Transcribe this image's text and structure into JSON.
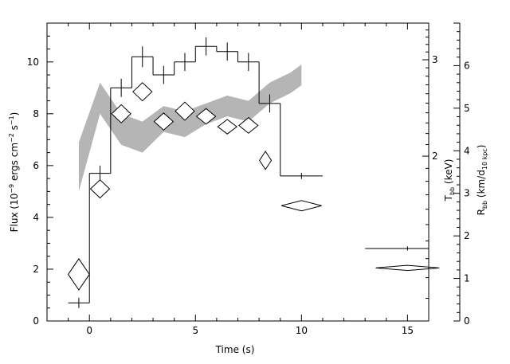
{
  "chart_data": {
    "type": "line",
    "xlabel": "Time (s)",
    "ylabel_left": {
      "main": "Flux (10",
      "exp1": "−9",
      "mid": " ergs cm",
      "exp2": "−2",
      "mid2": " s",
      "exp3": "−1",
      "end": ")"
    },
    "ylabel_right1": {
      "main": "T",
      "sub": "bb",
      "end": " (keV)"
    },
    "ylabel_right2": {
      "main": "R",
      "sub": "bb",
      "mid": " (km/d",
      "sub2": "10 kpc",
      "end": ")"
    },
    "xlim": [
      -2,
      16
    ],
    "ylim_left": [
      0,
      11.5
    ],
    "ylim_temp_log": [
      1.0,
      3.5
    ],
    "ylim_radius": [
      0,
      7
    ],
    "x_ticks": [
      0,
      5,
      10,
      15
    ],
    "x_tick_labels": [
      "0",
      "5",
      "10",
      "15"
    ],
    "y_left_ticks": [
      0,
      2,
      4,
      6,
      8,
      10
    ],
    "y_left_tick_labels": [
      "0",
      "2",
      "4",
      "6",
      "8",
      "10"
    ],
    "y_temp_ticks": [
      2,
      3
    ],
    "y_temp_tick_labels": [
      "2",
      "3"
    ],
    "y_radius_ticks": [
      0,
      1,
      2,
      3,
      4,
      5,
      6
    ],
    "y_radius_tick_labels": [
      "0",
      "1",
      "2",
      "3",
      "4",
      "5",
      "6"
    ],
    "flux_steps": [
      {
        "x0": -1.0,
        "x1": 0.0,
        "y": 0.7,
        "err": 0.2,
        "xc": -0.5
      },
      {
        "x0": 0.0,
        "x1": 1.0,
        "y": 5.7,
        "err": 0.3,
        "xc": 0.5
      },
      {
        "x0": 1.0,
        "x1": 2.0,
        "y": 9.0,
        "err": 0.35,
        "xc": 1.5
      },
      {
        "x0": 2.0,
        "x1": 3.0,
        "y": 10.2,
        "err": 0.4,
        "xc": 2.5
      },
      {
        "x0": 3.0,
        "x1": 4.0,
        "y": 9.5,
        "err": 0.35,
        "xc": 3.5
      },
      {
        "x0": 4.0,
        "x1": 5.0,
        "y": 10.0,
        "err": 0.35,
        "xc": 4.5
      },
      {
        "x0": 5.0,
        "x1": 6.0,
        "y": 10.6,
        "err": 0.35,
        "xc": 5.5
      },
      {
        "x0": 6.0,
        "x1": 7.0,
        "y": 10.4,
        "err": 0.35,
        "xc": 6.5
      },
      {
        "x0": 7.0,
        "x1": 8.0,
        "y": 10.0,
        "err": 0.35,
        "xc": 7.5
      },
      {
        "x0": 8.0,
        "x1": 9.0,
        "y": 8.4,
        "err": 0.35,
        "xc": 8.5
      },
      {
        "x0": 9.0,
        "x1": 11.0,
        "y": 5.6,
        "err": 0.12,
        "xc": 10.0
      },
      {
        "x0": 13.0,
        "x1": 17.0,
        "y": 2.8,
        "err": 0.08,
        "xc": 15.0
      }
    ],
    "temperature_diamonds": [
      {
        "x": -0.5,
        "y": 1.8,
        "hw": 0.5,
        "hh": 0.6
      },
      {
        "x": 0.5,
        "y": 5.1,
        "hw": 0.45,
        "hh": 0.35
      },
      {
        "x": 1.5,
        "y": 8.0,
        "hw": 0.45,
        "hh": 0.35
      },
      {
        "x": 2.5,
        "y": 8.85,
        "hw": 0.45,
        "hh": 0.35
      },
      {
        "x": 3.5,
        "y": 7.7,
        "hw": 0.45,
        "hh": 0.33
      },
      {
        "x": 4.5,
        "y": 8.1,
        "hw": 0.45,
        "hh": 0.35
      },
      {
        "x": 5.5,
        "y": 7.9,
        "hw": 0.45,
        "hh": 0.3
      },
      {
        "x": 6.5,
        "y": 7.5,
        "hw": 0.45,
        "hh": 0.28
      },
      {
        "x": 7.5,
        "y": 7.55,
        "hw": 0.45,
        "hh": 0.3
      },
      {
        "x": 8.3,
        "y": 6.2,
        "hw": 0.28,
        "hh": 0.35
      },
      {
        "x": 10.0,
        "y": 4.45,
        "hw": 0.95,
        "hh": 0.2
      },
      {
        "x": 15.0,
        "y": 2.05,
        "hw": 1.5,
        "hh": 0.1
      }
    ],
    "radius_band": {
      "x": [
        -0.5,
        0.5,
        1.5,
        2.5,
        3.5,
        4.5,
        5.5,
        6.5,
        7.5,
        8.5,
        9.5,
        10.0
      ],
      "upper": [
        6.9,
        9.2,
        8.0,
        7.7,
        8.3,
        8.1,
        8.4,
        8.7,
        8.5,
        9.2,
        9.6,
        9.9
      ],
      "lower": [
        5.0,
        8.0,
        6.8,
        6.5,
        7.3,
        7.1,
        7.6,
        7.9,
        7.7,
        8.4,
        8.8,
        9.1
      ]
    },
    "colors": {
      "band": "#b5b5b5",
      "lines": "#000000",
      "background": "#ffffff"
    },
    "grid": false
  }
}
